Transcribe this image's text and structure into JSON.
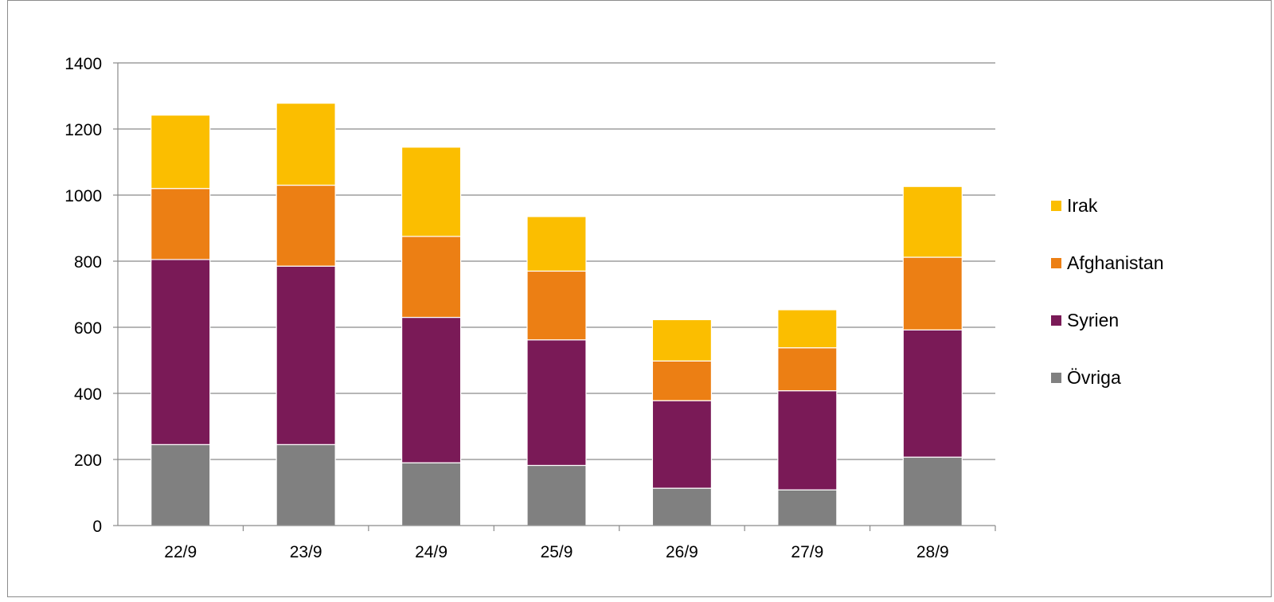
{
  "chart_data": {
    "type": "bar",
    "stacked": true,
    "categories": [
      "22/9",
      "23/9",
      "24/9",
      "25/9",
      "26/9",
      "27/9",
      "28/9"
    ],
    "series": [
      {
        "name": "Övriga",
        "color": "#808080",
        "values": [
          245,
          245,
          190,
          182,
          113,
          108,
          207
        ]
      },
      {
        "name": "Syrien",
        "color": "#7a1a57",
        "values": [
          560,
          540,
          440,
          380,
          265,
          300,
          385
        ]
      },
      {
        "name": "Afghanistan",
        "color": "#ec7f14",
        "values": [
          215,
          245,
          245,
          208,
          120,
          130,
          220
        ]
      },
      {
        "name": "Irak",
        "color": "#fbbe00",
        "values": [
          222,
          248,
          270,
          165,
          125,
          115,
          214
        ]
      }
    ],
    "ylim": [
      0,
      1400
    ],
    "yticks": [
      0,
      200,
      400,
      600,
      800,
      1000,
      1200,
      1400
    ],
    "grid": true,
    "legend": "right"
  }
}
